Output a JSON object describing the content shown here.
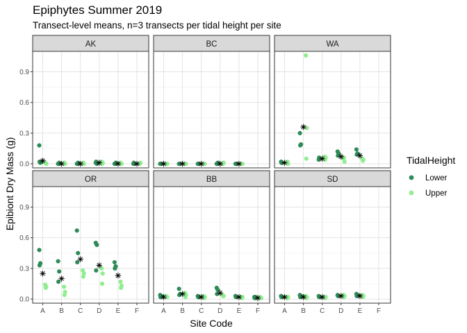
{
  "chart_data": {
    "type": "scatter",
    "title": "Epiphytes Summer 2019",
    "subtitle": "Transect-level means, n=3 transects per tidal height per site",
    "xlabel": "Site Code",
    "ylabel": "Epibiont Dry Mass (g)",
    "x_categories": [
      "A",
      "B",
      "C",
      "D",
      "E",
      "F"
    ],
    "y_ticks": [
      0.0,
      0.3,
      0.6,
      0.9
    ],
    "y_tick_labels": [
      "0.0",
      "0.3",
      "0.6",
      "0.9"
    ],
    "ylim": [
      -0.04,
      1.1
    ],
    "grid": true,
    "legend": {
      "title": "TidalHeight",
      "position": "right",
      "entries": [
        {
          "label": "Lower",
          "color": "#2e8b57"
        },
        {
          "label": "Upper",
          "color": "#90ee90"
        }
      ]
    },
    "series_colors": {
      "Lower": "#2e8b57",
      "Upper": "#90ee90",
      "mean": "#000000"
    },
    "panels": [
      {
        "site": "AK",
        "points": {
          "A": {
            "Lower": [
              0.18,
              0.01,
              0.02
            ],
            "Upper": [
              0.01,
              0.0,
              0.01
            ],
            "mean": 0.03
          },
          "B": {
            "Lower": [
              0.0,
              0.01,
              0.0
            ],
            "Upper": [
              0.0,
              0.0,
              0.01
            ],
            "mean": 0.0
          },
          "C": {
            "Lower": [
              0.0,
              0.01,
              0.0
            ],
            "Upper": [
              0.0,
              0.0,
              0.01
            ],
            "mean": 0.0
          },
          "D": {
            "Lower": [
              0.01,
              0.0,
              0.02
            ],
            "Upper": [
              0.02,
              0.01,
              0.0
            ],
            "mean": 0.01
          },
          "E": {
            "Lower": [
              0.0,
              0.01,
              0.0
            ],
            "Upper": [
              0.01,
              0.0,
              0.0
            ],
            "mean": 0.0
          },
          "F": {
            "Lower": [
              0.0,
              0.0,
              0.01
            ],
            "Upper": [
              0.0,
              0.01,
              0.0
            ],
            "mean": 0.0
          }
        }
      },
      {
        "site": "BC",
        "points": {
          "A": {
            "Lower": [
              0.0,
              0.0,
              0.0
            ],
            "Upper": [
              0.0,
              0.0,
              0.0
            ],
            "mean": 0.0
          },
          "B": {
            "Lower": [
              0.0,
              0.0,
              0.0
            ],
            "Upper": [
              0.0,
              0.0,
              0.0
            ],
            "mean": 0.0
          },
          "C": {
            "Lower": [
              0.0,
              0.0,
              0.0
            ],
            "Upper": [
              0.0,
              0.0,
              0.0
            ],
            "mean": 0.0
          },
          "D": {
            "Lower": [
              0.0,
              0.01,
              0.0
            ],
            "Upper": [
              0.0,
              0.01,
              0.0
            ],
            "mean": 0.0
          },
          "E": {
            "Lower": [
              0.0,
              0.0,
              0.0
            ],
            "Upper": [
              0.0,
              0.0,
              0.0
            ],
            "mean": 0.0
          }
        }
      },
      {
        "site": "WA",
        "points": {
          "A": {
            "Lower": [
              0.02,
              0.01,
              0.01
            ],
            "Upper": [
              0.01,
              0.0,
              0.02
            ],
            "mean": 0.01
          },
          "B": {
            "Lower": [
              0.3,
              0.19,
              0.18
            ],
            "Upper": [
              1.06,
              0.35,
              0.05
            ],
            "mean": 0.36
          },
          "C": {
            "Lower": [
              0.04,
              0.05,
              0.06
            ],
            "Upper": [
              0.07,
              0.06,
              0.04
            ],
            "mean": 0.05
          },
          "D": {
            "Lower": [
              0.12,
              0.1,
              0.08
            ],
            "Upper": [
              0.05,
              0.02,
              0.06
            ],
            "mean": 0.07
          },
          "E": {
            "Lower": [
              0.14,
              0.1,
              0.09
            ],
            "Upper": [
              0.05,
              0.04,
              0.03
            ],
            "mean": 0.08
          }
        }
      },
      {
        "site": "OR",
        "points": {
          "A": {
            "Lower": [
              0.48,
              0.35,
              0.33
            ],
            "Upper": [
              0.14,
              0.12,
              0.11
            ],
            "mean": 0.25
          },
          "B": {
            "Lower": [
              0.37,
              0.27,
              0.17
            ],
            "Upper": [
              0.12,
              0.07,
              0.04
            ],
            "mean": 0.2
          },
          "C": {
            "Lower": [
              0.67,
              0.45,
              0.36
            ],
            "Upper": [
              0.28,
              0.25,
              0.22
            ],
            "mean": 0.39
          },
          "D": {
            "Lower": [
              0.55,
              0.53,
              0.28
            ],
            "Upper": [
              0.3,
              0.25,
              0.15
            ],
            "mean": 0.33
          },
          "E": {
            "Lower": [
              0.36,
              0.32,
              0.3
            ],
            "Upper": [
              0.17,
              0.13,
              0.11
            ],
            "mean": 0.23
          }
        }
      },
      {
        "site": "BB",
        "points": {
          "A": {
            "Lower": [
              0.04,
              0.03,
              0.02
            ],
            "Upper": [
              0.03,
              0.02,
              0.02
            ],
            "mean": 0.02
          },
          "B": {
            "Lower": [
              0.1,
              0.05,
              0.04
            ],
            "Upper": [
              0.06,
              0.04,
              0.02
            ],
            "mean": 0.05
          },
          "C": {
            "Lower": [
              0.03,
              0.02,
              0.02
            ],
            "Upper": [
              0.03,
              0.02,
              0.01
            ],
            "mean": 0.02
          },
          "D": {
            "Lower": [
              0.11,
              0.09,
              0.05
            ],
            "Upper": [
              0.04,
              0.03,
              0.03
            ],
            "mean": 0.06
          },
          "E": {
            "Lower": [
              0.03,
              0.02,
              0.02
            ],
            "Upper": [
              0.02,
              0.02,
              0.01
            ],
            "mean": 0.02
          },
          "F": {
            "Lower": [
              0.02,
              0.02,
              0.01
            ],
            "Upper": [
              0.02,
              0.01,
              0.01
            ],
            "mean": 0.01
          }
        }
      },
      {
        "site": "SD",
        "points": {
          "A": {
            "Lower": [
              0.03,
              0.02,
              0.02
            ],
            "Upper": [
              0.02,
              0.02,
              0.01
            ],
            "mean": 0.02
          },
          "B": {
            "Lower": [
              0.04,
              0.03,
              0.02
            ],
            "Upper": [
              0.03,
              0.02,
              0.01
            ],
            "mean": 0.02
          },
          "C": {
            "Lower": [
              0.03,
              0.02,
              0.02
            ],
            "Upper": [
              0.02,
              0.02,
              0.01
            ],
            "mean": 0.02
          },
          "D": {
            "Lower": [
              0.04,
              0.03,
              0.03
            ],
            "Upper": [
              0.04,
              0.03,
              0.02
            ],
            "mean": 0.03
          },
          "E": {
            "Lower": [
              0.05,
              0.04,
              0.03
            ],
            "Upper": [
              0.04,
              0.03,
              0.02
            ],
            "mean": 0.03
          }
        }
      }
    ]
  }
}
